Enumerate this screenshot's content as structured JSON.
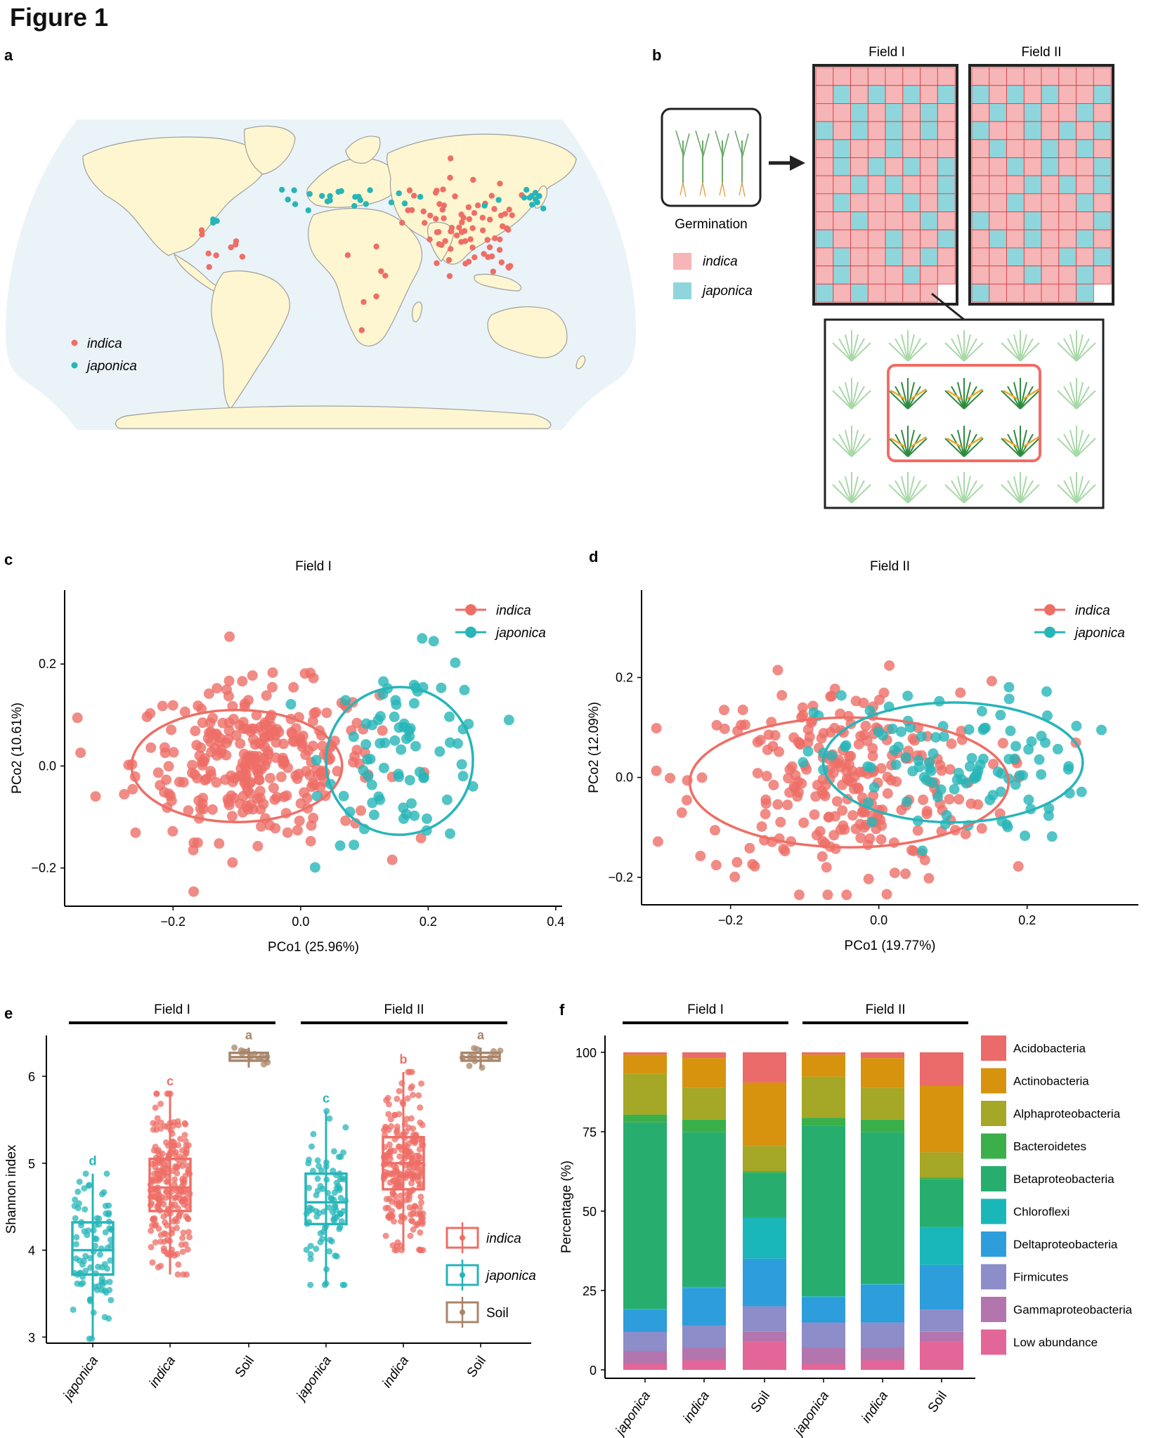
{
  "figure": {
    "title": "Figure 1",
    "panel_labels": [
      "a",
      "b",
      "c",
      "d",
      "e",
      "f"
    ]
  },
  "colors": {
    "indica": "#EE6E66",
    "japonica": "#27B5B8",
    "soil": "#A8856A",
    "map_ocean": "#EAF3F8",
    "map_land": "#FDF6D0",
    "cell_indica": "#F6B5B6",
    "cell_japonica": "#8ED6DC"
  },
  "panel_a": {
    "legend": [
      {
        "label": "indica",
        "color": "#EE6E66"
      },
      {
        "label": "japonica",
        "color": "#27B5B8"
      }
    ]
  },
  "panel_b": {
    "germination_label": "Germination",
    "field_titles": [
      "Field I",
      "Field II"
    ],
    "legend": [
      {
        "label": "indica",
        "color": "#F6B5B6"
      },
      {
        "label": "japonica",
        "color": "#8ED6DC"
      }
    ]
  },
  "chart_data": [
    {
      "id": "c",
      "type": "scatter",
      "title": "Field I",
      "xlabel": "PCo1 (25.96%)",
      "ylabel": "PCo2 (10.61%)",
      "xlim": [
        -0.37,
        0.41
      ],
      "ylim": [
        -0.275,
        0.345
      ],
      "xticks": [
        -0.2,
        0.0,
        0.2,
        0.4
      ],
      "xtick_labels": [
        "−0.2",
        "0.0",
        "0.2",
        "0.4"
      ],
      "yticks": [
        -0.2,
        0.0,
        0.2
      ],
      "ytick_labels": [
        "−0.2",
        "0.0",
        "0.2"
      ],
      "legend_position": "top-right",
      "series": [
        {
          "name": "indica",
          "color": "#EE6E66",
          "n": 300,
          "center": [
            -0.07,
            0.008
          ],
          "spread": [
            0.095,
            0.075
          ],
          "ellipse": {
            "center": [
              -0.1,
              0.0
            ],
            "rx": 0.165,
            "ry": 0.11
          }
        },
        {
          "name": "japonica",
          "color": "#27B5B8",
          "n": 80,
          "center": [
            0.17,
            0.03
          ],
          "spread": [
            0.065,
            0.09
          ],
          "ellipse": {
            "center": [
              0.155,
              0.01
            ],
            "rx": 0.115,
            "ry": 0.145,
            "rotation": 18
          }
        }
      ]
    },
    {
      "id": "d",
      "type": "scatter",
      "title": "Field II",
      "xlabel": "PCo1 (19.77%)",
      "ylabel": "PCo2 (12.09%)",
      "xlim": [
        -0.32,
        0.35
      ],
      "ylim": [
        -0.255,
        0.375
      ],
      "xticks": [
        -0.2,
        0.0,
        0.2
      ],
      "xtick_labels": [
        "−0.2",
        "0.0",
        "0.2"
      ],
      "yticks": [
        -0.2,
        0.0,
        0.2
      ],
      "ytick_labels": [
        "−0.2",
        "0.0",
        "0.2"
      ],
      "legend_position": "top-right",
      "series": [
        {
          "name": "indica",
          "color": "#EE6E66",
          "n": 260,
          "center": [
            -0.05,
            -0.01
          ],
          "spread": [
            0.1,
            0.1
          ],
          "ellipse": {
            "center": [
              -0.04,
              -0.01
            ],
            "rx": 0.215,
            "ry": 0.13
          }
        },
        {
          "name": "japonica",
          "color": "#27B5B8",
          "n": 110,
          "center": [
            0.1,
            0.02
          ],
          "spread": [
            0.09,
            0.075
          ],
          "ellipse": {
            "center": [
              0.1,
              0.03
            ],
            "rx": 0.175,
            "ry": 0.12
          }
        }
      ]
    },
    {
      "id": "e",
      "type": "box",
      "ylabel": "Shannon index",
      "ylim": [
        2.93,
        6.47
      ],
      "yticks": [
        3,
        4,
        5,
        6
      ],
      "ytick_labels": [
        "3",
        "4",
        "5",
        "6"
      ],
      "groups": [
        {
          "field": "Field I",
          "categories": [
            "japonica",
            "indica",
            "Soil"
          ]
        },
        {
          "field": "Field II",
          "categories": [
            "japonica",
            "indica",
            "Soil"
          ]
        }
      ],
      "boxes": [
        {
          "field": "Field I",
          "category": "japonica",
          "color": "#27B5B8",
          "letter": "d",
          "min": 2.98,
          "q1": 3.72,
          "median": 4.0,
          "q3": 4.32,
          "max": 4.88,
          "n": 90
        },
        {
          "field": "Field I",
          "category": "indica",
          "color": "#EE6E66",
          "letter": "c",
          "min": 3.72,
          "q1": 4.45,
          "median": 4.72,
          "q3": 5.05,
          "max": 5.8,
          "n": 230
        },
        {
          "field": "Field I",
          "category": "Soil",
          "color": "#A8856A",
          "letter": "a",
          "min": 6.1,
          "q1": 6.18,
          "median": 6.22,
          "q3": 6.27,
          "max": 6.33,
          "n": 12
        },
        {
          "field": "Field II",
          "category": "japonica",
          "color": "#27B5B8",
          "letter": "c",
          "min": 3.6,
          "q1": 4.3,
          "median": 4.55,
          "q3": 4.88,
          "max": 5.6,
          "n": 90
        },
        {
          "field": "Field II",
          "category": "indica",
          "color": "#EE6E66",
          "letter": "b",
          "min": 4.0,
          "q1": 4.7,
          "median": 5.0,
          "q3": 5.3,
          "max": 6.05,
          "n": 230
        },
        {
          "field": "Field II",
          "category": "Soil",
          "color": "#A8856A",
          "letter": "a",
          "min": 6.1,
          "q1": 6.18,
          "median": 6.22,
          "q3": 6.27,
          "max": 6.33,
          "n": 12
        }
      ],
      "legend": [
        {
          "label": "indica",
          "color": "#EE6E66"
        },
        {
          "label": "japonica",
          "color": "#27B5B8"
        },
        {
          "label": "Soil",
          "color": "#A8856A"
        }
      ],
      "legend_position": "bottom-right"
    },
    {
      "id": "f",
      "type": "bar",
      "stacked": true,
      "ylabel": "Percentage (%)",
      "ylim": [
        0,
        100
      ],
      "yticks": [
        0,
        25,
        50,
        75,
        100
      ],
      "ytick_labels": [
        "0",
        "25",
        "50",
        "75",
        "100"
      ],
      "groups": [
        {
          "field": "Field I",
          "categories": [
            "japonica",
            "indica",
            "Soil"
          ]
        },
        {
          "field": "Field II",
          "categories": [
            "japonica",
            "indica",
            "Soil"
          ]
        }
      ],
      "categories": [
        "japonica",
        "indica",
        "Soil",
        "japonica",
        "indica",
        "Soil"
      ],
      "legend_position": "right",
      "series": [
        {
          "name": "Low abundance",
          "color": "#E36699",
          "values": [
            2,
            3,
            9,
            2,
            3,
            9
          ]
        },
        {
          "name": "Gammaproteobacteria",
          "color": "#B275AE",
          "values": [
            4,
            4,
            3,
            5,
            4,
            3
          ]
        },
        {
          "name": "Firmicutes",
          "color": "#8C8DC9",
          "values": [
            6,
            7,
            8,
            8,
            8,
            7
          ]
        },
        {
          "name": "Deltaproteobacteria",
          "color": "#2E9DDC",
          "values": [
            7,
            12,
            15,
            8,
            12,
            14
          ]
        },
        {
          "name": "Chloroflexi",
          "color": "#1AB7BA",
          "values": [
            0.3,
            0.3,
            13,
            0.3,
            0.3,
            12
          ]
        },
        {
          "name": "Betaproteobacteria",
          "color": "#27AE6E",
          "values": [
            59,
            49,
            14,
            54,
            48,
            15
          ]
        },
        {
          "name": "Bacteroidetes",
          "color": "#3BAF4A",
          "values": [
            2.5,
            4,
            0.5,
            2.5,
            4,
            0.5
          ]
        },
        {
          "name": "Alphaproteobacteria",
          "color": "#A5A726",
          "values": [
            13,
            10,
            8,
            13,
            10,
            8
          ]
        },
        {
          "name": "Actinobacteria",
          "color": "#D7930E",
          "values": [
            6,
            9.5,
            20,
            7,
            9.5,
            21
          ]
        },
        {
          "name": "Acidobacteria",
          "color": "#EB6A6A",
          "values": [
            0.7,
            1.8,
            9.5,
            0.7,
            1.8,
            10.5
          ]
        }
      ]
    }
  ]
}
